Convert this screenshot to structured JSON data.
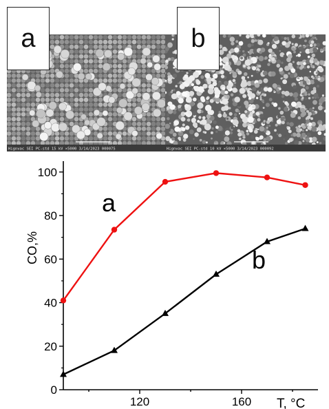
{
  "images": [
    {
      "label": "a",
      "footer": "Hignvac SEI PC-std 15 kV ×5000 3/14/2023 000075"
    },
    {
      "label": "b",
      "footer": "Hignvac SEI PC-std 10 kV ×5000 3/14/2023 000092"
    }
  ],
  "chart_data": {
    "type": "line",
    "xlabel": "T, °C",
    "ylabel": "CO,%",
    "xlim": [
      90,
      190
    ],
    "ylim": [
      0,
      105
    ],
    "xticks": [
      120,
      160
    ],
    "yticks": [
      0,
      20,
      40,
      60,
      80,
      100
    ],
    "series": [
      {
        "name": "a",
        "color": "#ee1111",
        "marker": "circle",
        "x": [
          90,
          110,
          130,
          150,
          170,
          185
        ],
        "y": [
          41,
          73.5,
          95.5,
          99.5,
          97.5,
          94
        ]
      },
      {
        "name": "b",
        "color": "#000000",
        "marker": "triangle",
        "x": [
          90,
          110,
          130,
          150,
          170,
          185
        ],
        "y": [
          7,
          18,
          35,
          53,
          68,
          74
        ]
      }
    ]
  }
}
